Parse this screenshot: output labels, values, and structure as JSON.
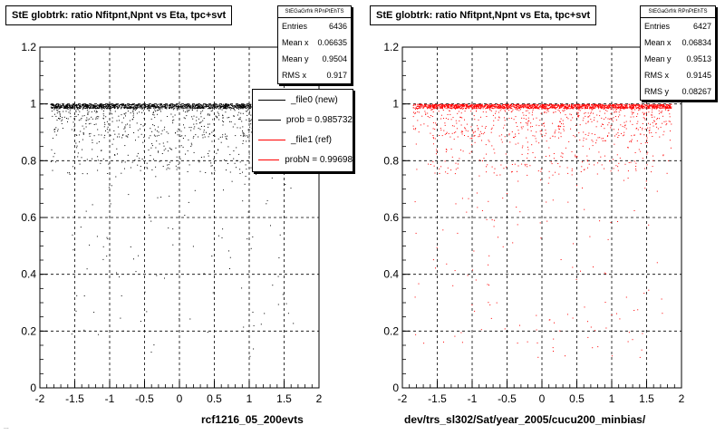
{
  "chart_data": [
    {
      "type": "scatter",
      "title": "StE globtrk: ratio Nfitpnt,Npnt vs Eta, tpc+svt",
      "xlabel": "rcf1216_05_200evts",
      "ylabel": "",
      "xlim": [
        -2,
        2
      ],
      "ylim": [
        0,
        1.2
      ],
      "xticks": [
        "-2",
        "-1.5",
        "-1",
        "-0.5",
        "0",
        "0.5",
        "1",
        "1.5",
        "2"
      ],
      "yticks": [
        "0",
        "0.2",
        "0.4",
        "0.6",
        "0.8",
        "1",
        "1.2"
      ],
      "grid": true,
      "color": "#000000",
      "x_range_of_points": [
        -1.85,
        1.85
      ],
      "dense_band_y": 1.0,
      "stats": {
        "header": "StEGaGrfrk RPnPtEhTS",
        "rows": [
          {
            "label": "Entries",
            "value": "6436"
          },
          {
            "label": "Mean x",
            "value": "0.06635"
          },
          {
            "label": "Mean y",
            "value": "0.9504"
          },
          {
            "label": "RMS x",
            "value": "0.917"
          }
        ]
      },
      "legend": [
        {
          "label": "_file0 (new)",
          "color": "#000000"
        },
        {
          "label": "prob = 0.985732",
          "color": "#000000"
        },
        {
          "label": "_file1 (ref)",
          "color": "#ff0000"
        },
        {
          "label": "probN = 0.99698",
          "color": "#ff0000"
        }
      ]
    },
    {
      "type": "scatter",
      "title": "StE globtrk: ratio Nfitpnt,Npnt vs Eta, tpc+svt",
      "xlabel": "dev/trs_sl302/Sat/year_2005/cucu200_minbias/",
      "ylabel": "",
      "xlim": [
        -2,
        2
      ],
      "ylim": [
        0,
        1.2
      ],
      "xticks": [
        "-2",
        "-1.5",
        "-1",
        "-0.5",
        "0",
        "0.5",
        "1",
        "1.5",
        "2"
      ],
      "yticks": [
        "0",
        "0.2",
        "0.4",
        "0.6",
        "0.8",
        "1",
        "1.2"
      ],
      "grid": true,
      "color": "#ff0000",
      "x_range_of_points": [
        -1.85,
        1.85
      ],
      "dense_band_y": 1.0,
      "stats": {
        "header": "StEGaGrfrk RPnPtEhTS",
        "rows": [
          {
            "label": "Entries",
            "value": "6427"
          },
          {
            "label": "Mean x",
            "value": "0.06834"
          },
          {
            "label": "Mean y",
            "value": "0.9513"
          },
          {
            "label": "RMS x",
            "value": "0.9145"
          },
          {
            "label": "RMS y",
            "value": "0.08267"
          }
        ]
      }
    }
  ],
  "footer": "..."
}
